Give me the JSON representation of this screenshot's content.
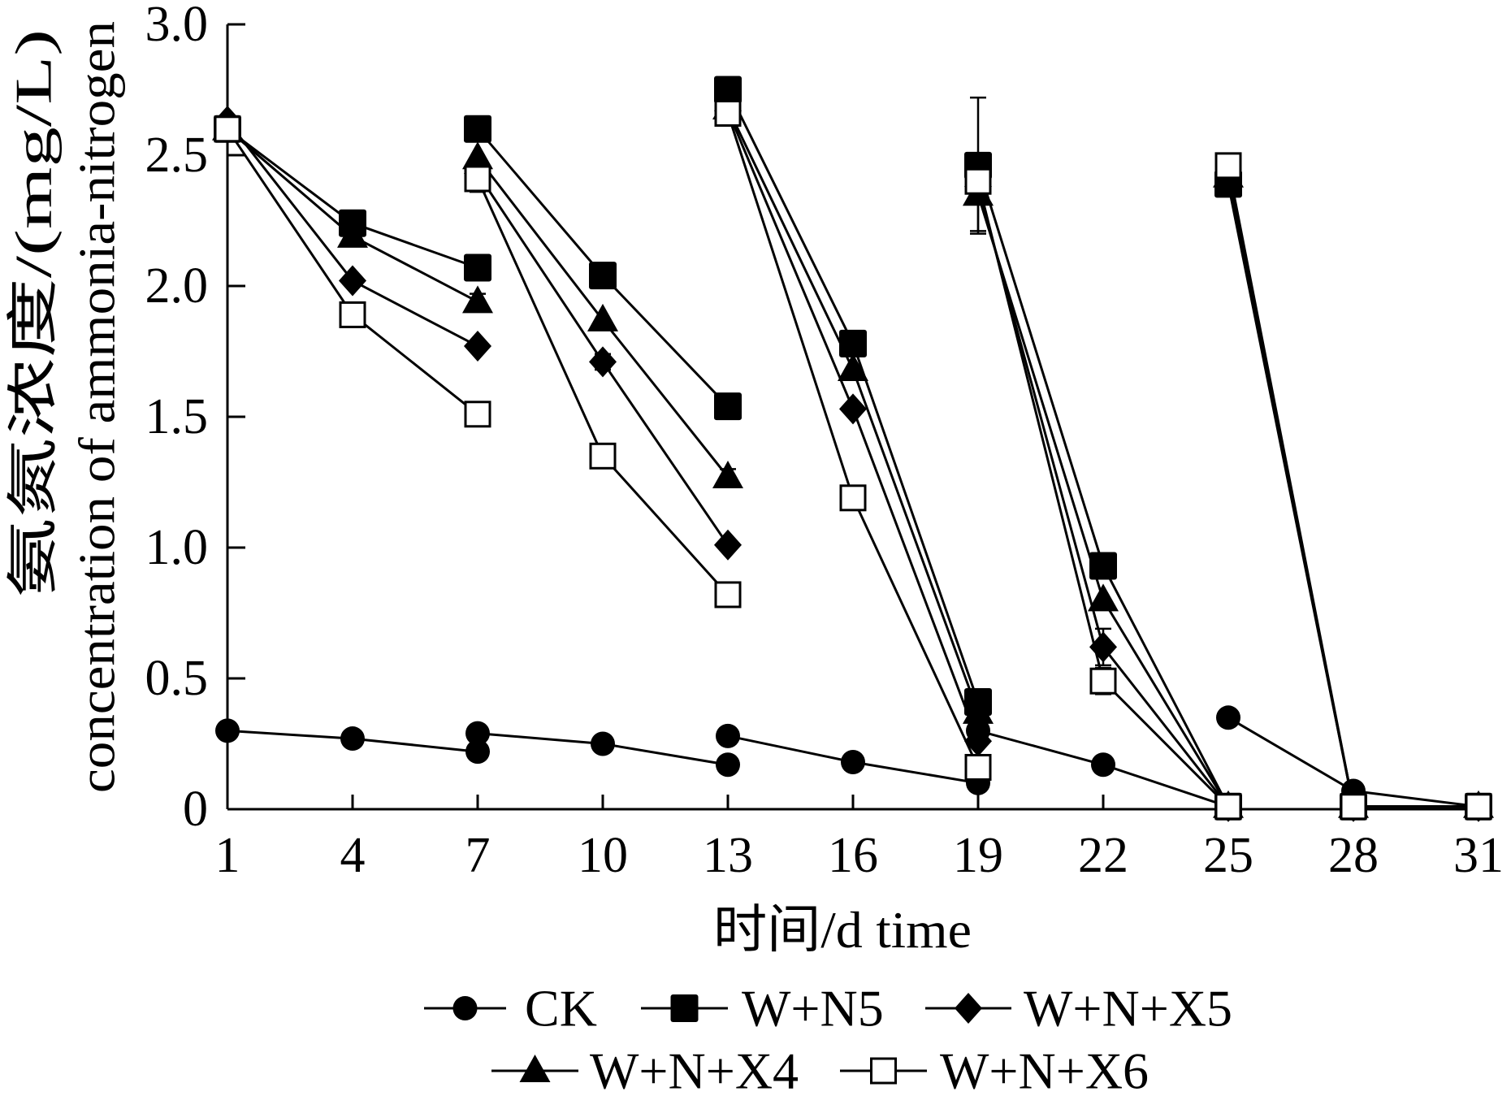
{
  "chart_data": {
    "type": "line",
    "xlabel": "时间/d time",
    "ylabel": [
      "氨氮浓度/(mg/L)",
      "concentration of ammonia-nitrogen"
    ],
    "xlim": [
      1,
      31
    ],
    "ylim": [
      0,
      3.0
    ],
    "xticks": [
      "1",
      "4",
      "7",
      "10",
      "13",
      "16",
      "19",
      "22",
      "25",
      "28",
      "31"
    ],
    "yticks": [
      "0",
      "0.5",
      "1.0",
      "1.5",
      "2.0",
      "2.5",
      "3.0"
    ],
    "grid": false,
    "legend_position": "bottom",
    "series": [
      {
        "name": "CK",
        "marker": "circle",
        "color": "#000000",
        "segments": [
          [
            [
              1,
              0.3
            ],
            [
              4,
              0.27
            ],
            [
              7,
              0.22
            ]
          ],
          [
            [
              7,
              0.29
            ],
            [
              10,
              0.25
            ],
            [
              13,
              0.17
            ]
          ],
          [
            [
              13,
              0.28
            ],
            [
              16,
              0.18
            ],
            [
              19,
              0.1
            ]
          ],
          [
            [
              19,
              0.3
            ],
            [
              22,
              0.17
            ],
            [
              25,
              0.01
            ]
          ],
          [
            [
              25,
              0.35
            ],
            [
              28,
              0.07
            ],
            [
              31,
              0.01
            ]
          ]
        ]
      },
      {
        "name": "W+N5",
        "marker": "square",
        "color": "#000000",
        "segments": [
          [
            [
              1,
              2.6
            ],
            [
              4,
              2.24
            ],
            [
              7,
              2.07
            ]
          ],
          [
            [
              7,
              2.6
            ],
            [
              10,
              2.04
            ],
            [
              13,
              1.54
            ]
          ],
          [
            [
              13,
              2.75
            ],
            [
              16,
              1.78
            ],
            [
              19,
              0.41
            ]
          ],
          [
            [
              19,
              2.46,
              0.26
            ],
            [
              22,
              0.93
            ],
            [
              25,
              0.01
            ]
          ],
          [
            [
              25,
              2.39
            ],
            [
              28,
              0.01
            ],
            [
              31,
              0.01
            ]
          ]
        ]
      },
      {
        "name": "W+N+X5",
        "marker": "diamond",
        "color": "#000000",
        "segments": [
          [
            [
              1,
              2.63
            ],
            [
              4,
              2.02
            ],
            [
              7,
              1.77
            ]
          ],
          [
            [
              7,
              2.43
            ],
            [
              10,
              1.71,
              0.03
            ],
            [
              13,
              1.01
            ]
          ],
          [
            [
              13,
              2.67
            ],
            [
              16,
              1.53
            ],
            [
              19,
              0.26
            ]
          ],
          [
            [
              19,
              2.38
            ],
            [
              22,
              0.62,
              0.07
            ],
            [
              25,
              0.01
            ]
          ],
          [
            [
              25,
              2.41
            ],
            [
              28,
              0.01
            ],
            [
              31,
              0.01
            ]
          ]
        ]
      },
      {
        "name": "W+N+X4",
        "marker": "triangle",
        "color": "#000000",
        "segments": [
          [
            [
              1,
              2.6
            ],
            [
              4,
              2.19
            ],
            [
              7,
              1.94,
              0.03
            ]
          ],
          [
            [
              7,
              2.49
            ],
            [
              10,
              1.87
            ],
            [
              13,
              1.27,
              0.03
            ]
          ],
          [
            [
              13,
              2.68
            ],
            [
              16,
              1.68
            ],
            [
              19,
              0.37
            ]
          ],
          [
            [
              19,
              2.35,
              0.14
            ],
            [
              22,
              0.8
            ],
            [
              25,
              0.01
            ]
          ],
          [
            [
              25,
              2.42
            ],
            [
              28,
              0.01
            ],
            [
              31,
              0.01
            ]
          ]
        ]
      },
      {
        "name": "W+N+X6",
        "marker": "open-square",
        "color": "#000000",
        "segments": [
          [
            [
              1,
              2.6
            ],
            [
              4,
              1.89
            ],
            [
              7,
              1.51
            ]
          ],
          [
            [
              7,
              2.41,
              0.05
            ],
            [
              10,
              1.35,
              0.03
            ],
            [
              13,
              0.82
            ]
          ],
          [
            [
              13,
              2.66
            ],
            [
              16,
              1.19
            ],
            [
              19,
              0.16
            ]
          ],
          [
            [
              19,
              2.4
            ],
            [
              22,
              0.49,
              0.05
            ],
            [
              25,
              0.01
            ]
          ],
          [
            [
              25,
              2.46
            ],
            [
              28,
              0.01
            ],
            [
              31,
              0.01
            ]
          ]
        ]
      }
    ]
  }
}
